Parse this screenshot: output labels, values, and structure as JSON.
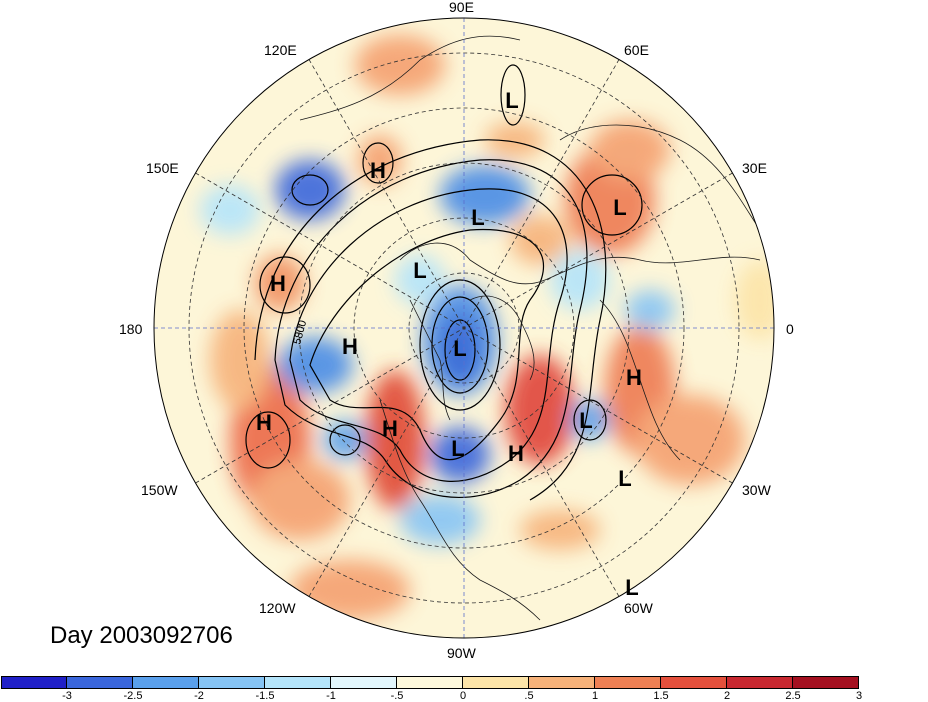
{
  "title": "Day 2003092706",
  "longitude_labels": [
    "90E",
    "60E",
    "30E",
    "0",
    "30W",
    "60W",
    "90W",
    "120W",
    "150W",
    "180",
    "150E",
    "120E"
  ],
  "contour_label": "5800",
  "pressure_centers": [
    {
      "type": "L",
      "lon": 75
    },
    {
      "type": "H",
      "lon": 20
    },
    {
      "type": "L",
      "lon": 100
    },
    {
      "type": "H",
      "lon": 125
    },
    {
      "type": "L",
      "lon": 125
    },
    {
      "type": "H",
      "lon": 165
    },
    {
      "type": "L",
      "lon": 180
    },
    {
      "type": "L",
      "lon": 260
    },
    {
      "type": "H",
      "lon": 205
    },
    {
      "type": "H",
      "lon": 345
    },
    {
      "type": "H",
      "lon": 215
    },
    {
      "type": "L",
      "lon": 240
    },
    {
      "type": "H",
      "lon": 300
    },
    {
      "type": "L",
      "lon": 320
    },
    {
      "type": "L",
      "lon": 310
    },
    {
      "type": "L",
      "lon": 295
    }
  ],
  "colorbar": {
    "colors": [
      "#2020c8",
      "#3a66dc",
      "#5aa0ec",
      "#86c4f4",
      "#b4e4fa",
      "#e2f6fc",
      "#fdf8dc",
      "#fce4a8",
      "#f6b27a",
      "#ee8054",
      "#e4503c",
      "#c82830",
      "#a41020"
    ],
    "labels": [
      "-3",
      "-2.5",
      "-2",
      "-1.5",
      "-1",
      "-.5",
      "0",
      ".5",
      "1",
      "1.5",
      "2",
      "2.5",
      "3"
    ]
  }
}
